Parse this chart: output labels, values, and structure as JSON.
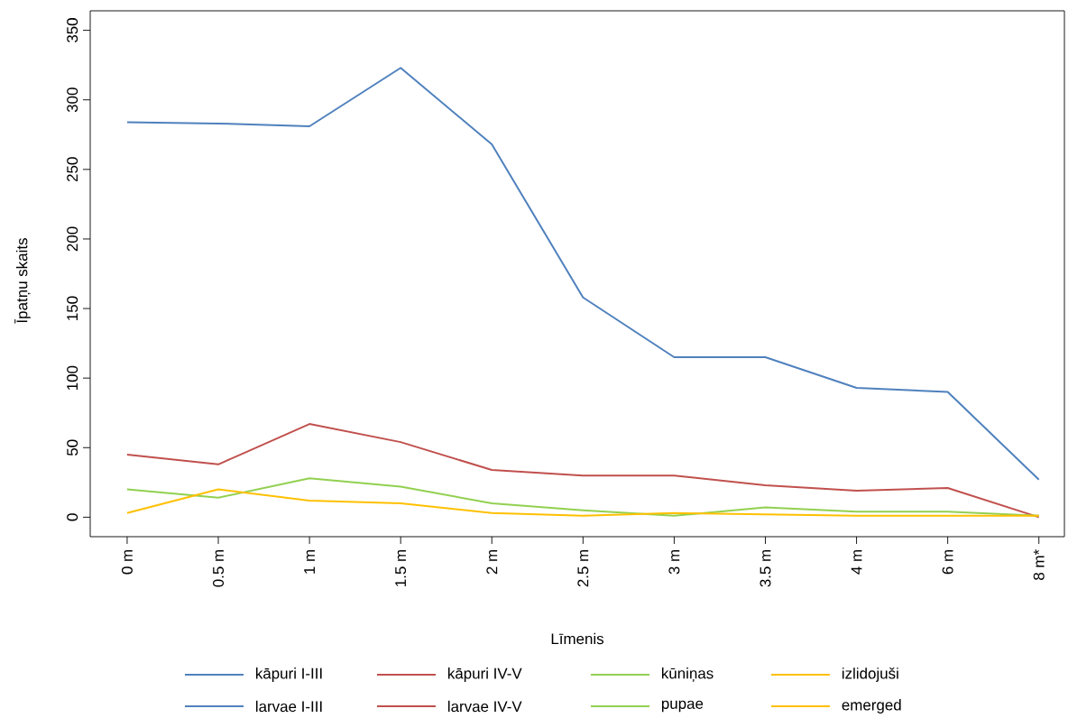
{
  "chart_data": {
    "type": "line",
    "xlabel": "Līmenis",
    "ylabel": "Īpatņu skaits",
    "categories": [
      "0 m",
      "0.5 m",
      "1 m",
      "1.5 m",
      "2 m",
      "2.5 m",
      "3 m",
      "3.5 m",
      "4 m",
      "6 m",
      "8 m*"
    ],
    "ylim": [
      -14,
      364
    ],
    "yticks": [
      0,
      50,
      100,
      150,
      200,
      250,
      300,
      350
    ],
    "legend": "bottom",
    "series": [
      {
        "name": "kāpuri I-III",
        "color": "#4f81bd",
        "values": [
          284,
          283,
          281,
          323,
          268,
          158,
          115,
          115,
          93,
          90,
          27
        ]
      },
      {
        "name": "kāpuri IV-V",
        "color": "#c0504d",
        "values": [
          45,
          38,
          67,
          54,
          34,
          30,
          30,
          23,
          19,
          21,
          0
        ]
      },
      {
        "name": "kūniņas",
        "color": "#92d050",
        "values": [
          20,
          14,
          28,
          22,
          10,
          5,
          1,
          7,
          4,
          4,
          1
        ]
      },
      {
        "name": "izlidojuši",
        "color": "#ffc000",
        "values": [
          3,
          20,
          12,
          10,
          3,
          1,
          3,
          2,
          1,
          1,
          1
        ]
      }
    ],
    "annotations": [
      "larvae I-III",
      "larvae IV-V",
      "pupae",
      "emerged"
    ]
  }
}
